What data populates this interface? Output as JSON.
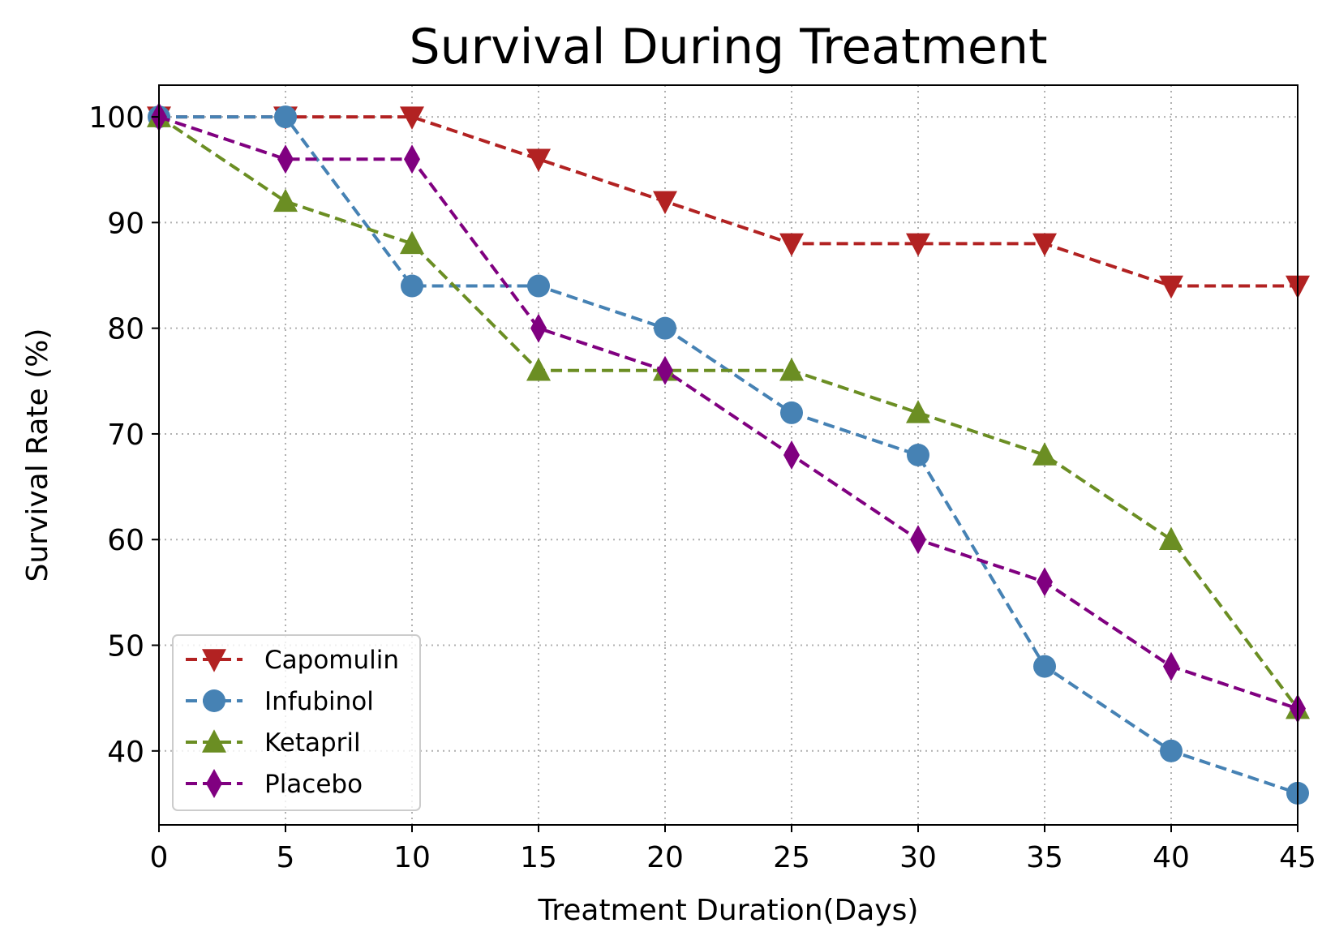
{
  "chart_data": {
    "type": "line",
    "title": "Survival During Treatment",
    "xlabel": "Treatment Duration(Days)",
    "ylabel": "Survival Rate (%)",
    "x": [
      0,
      5,
      10,
      15,
      20,
      25,
      30,
      35,
      40,
      45
    ],
    "xlim": [
      0,
      45
    ],
    "ylim": [
      33,
      103
    ],
    "xticks": [
      0,
      5,
      10,
      15,
      20,
      25,
      30,
      35,
      40,
      45
    ],
    "yticks": [
      40,
      50,
      60,
      70,
      80,
      90,
      100
    ],
    "grid": true,
    "grid_style": "dotted",
    "legend_position": "bottom-left",
    "series": [
      {
        "name": "Capomulin",
        "color": "#b22222",
        "marker": "triangle-down",
        "line_style": "dashed",
        "values": [
          100,
          100,
          100,
          96,
          92,
          88,
          88,
          88,
          84,
          84
        ]
      },
      {
        "name": "Infubinol",
        "color": "#4682b4",
        "marker": "circle",
        "line_style": "dashed",
        "values": [
          100,
          100,
          84,
          84,
          80,
          72,
          68,
          48,
          40,
          36
        ]
      },
      {
        "name": "Ketapril",
        "color": "#6b8e23",
        "marker": "triangle-up",
        "line_style": "dashed",
        "values": [
          100,
          92,
          88,
          76,
          76,
          76,
          72,
          68,
          60,
          44
        ]
      },
      {
        "name": "Placebo",
        "color": "#800080",
        "marker": "thin-diamond",
        "line_style": "dashed",
        "values": [
          100,
          96,
          96,
          80,
          76,
          68,
          60,
          56,
          48,
          44
        ]
      }
    ]
  }
}
